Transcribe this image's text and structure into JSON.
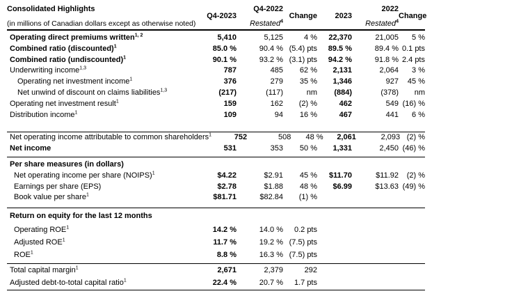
{
  "title": {
    "line1": "Consolidated Highlights",
    "line2": "(in millions of Canadian dollars except as otherwise noted)"
  },
  "columns": [
    {
      "label": "Q4-2023"
    },
    {
      "label": "Q4-2022",
      "sub": "Restated",
      "sup": "4"
    },
    {
      "label": "Change"
    },
    {
      "label": "2023"
    },
    {
      "label": "2022",
      "sub": "Restated",
      "sup": "4"
    },
    {
      "label": "Change"
    }
  ],
  "rows": [
    {
      "type": "data",
      "label": "Operating direct premiums written",
      "sup": "1, 2",
      "bold": true,
      "indent": 0,
      "values": [
        "5,410",
        "5,125",
        "4 %",
        "22,370",
        "21,005",
        "5 %"
      ]
    },
    {
      "type": "data",
      "label": "Combined ratio (discounted)",
      "sup": "1",
      "bold": true,
      "indent": 0,
      "values": [
        "85.0 %",
        "90.4 %",
        "(5.4) pts",
        "89.5 %",
        "89.4 %",
        "0.1 pts"
      ]
    },
    {
      "type": "data",
      "label": "Combined ratio (undiscounted)",
      "sup": "1",
      "bold": true,
      "indent": 0,
      "values": [
        "90.1 %",
        "93.2 %",
        "(3.1) pts",
        "94.2 %",
        "91.8 %",
        "2.4 pts"
      ]
    },
    {
      "type": "data",
      "label": "Underwriting income",
      "sup": "1,3",
      "indent": 0,
      "values": [
        "787",
        "485",
        "62 %",
        "2,131",
        "2,064",
        "3 %"
      ]
    },
    {
      "type": "data",
      "label": "Operating net investment income",
      "sup": "1",
      "indent": 2,
      "values": [
        "376",
        "279",
        "35 %",
        "1,346",
        "927",
        "45 %"
      ]
    },
    {
      "type": "data",
      "label": "Net unwind of discount on claims liabilities",
      "sup": "1,3",
      "indent": 2,
      "values": [
        "(217)",
        "(117)",
        "nm",
        "(884)",
        "(378)",
        "nm"
      ]
    },
    {
      "type": "data",
      "label": "Operating net investment result",
      "sup": "1",
      "indent": 0,
      "values": [
        "159",
        "162",
        "(2) %",
        "462",
        "549",
        "(16) %"
      ]
    },
    {
      "type": "data",
      "label": "Distribution income",
      "sup": "1",
      "indent": 0,
      "values": [
        "109",
        "94",
        "16 %",
        "467",
        "441",
        "6 %"
      ]
    },
    {
      "type": "rule"
    },
    {
      "type": "data",
      "label": "Net operating income attributable to common shareholders",
      "sup": "1",
      "indent": 0,
      "values": [
        "752",
        "508",
        "48 %",
        "2,061",
        "2,093",
        "(2) %"
      ]
    },
    {
      "type": "data",
      "label": "Net income",
      "bold": true,
      "indent": 0,
      "values": [
        "531",
        "353",
        "50 %",
        "1,331",
        "2,450",
        "(46) %"
      ]
    },
    {
      "type": "rule"
    },
    {
      "type": "section",
      "label": "Per share measures (in dollars)"
    },
    {
      "type": "data",
      "label": "Net operating income per share (NOIPS)",
      "sup": "1",
      "indent": 1,
      "values": [
        "$4.22",
        "$2.91",
        "45 %",
        "$11.70",
        "$11.92",
        "(2) %"
      ]
    },
    {
      "type": "data",
      "label": "Earnings per share (EPS)",
      "indent": 1,
      "values": [
        "$2.78",
        "$1.88",
        "48 %",
        "$6.99",
        "$13.63",
        "(49) %"
      ]
    },
    {
      "type": "data",
      "label": "Book value per share",
      "sup": "1",
      "indent": 1,
      "values": [
        "$81.71",
        "$82.84",
        "(1) %",
        "",
        "",
        ""
      ]
    },
    {
      "type": "rule"
    },
    {
      "type": "section",
      "label": "Return on equity for the last 12 months"
    },
    {
      "type": "data",
      "label": "Operating ROE",
      "sup": "1",
      "indent": 1,
      "values": [
        "14.2 %",
        "14.0 %",
        "0.2 pts",
        "",
        "",
        ""
      ]
    },
    {
      "type": "data",
      "label": "Adjusted ROE",
      "sup": "1",
      "indent": 1,
      "values": [
        "11.7 %",
        "19.2 %",
        "(7.5) pts",
        "",
        "",
        ""
      ]
    },
    {
      "type": "data",
      "label": "ROE",
      "sup": "1",
      "indent": 1,
      "values": [
        "8.8 %",
        "16.3 %",
        "(7.5) pts",
        "",
        "",
        ""
      ]
    },
    {
      "type": "rule"
    },
    {
      "type": "data",
      "label": "Total capital margin",
      "sup": "1",
      "indent": 0,
      "values": [
        "2,671",
        "2,379",
        "292",
        "",
        "",
        ""
      ]
    },
    {
      "type": "data",
      "label": "Adjusted debt-to-total capital ratio",
      "sup": "1",
      "indent": 0,
      "values": [
        "22.4 %",
        "20.7 %",
        "1.7 pts",
        "",
        "",
        ""
      ]
    },
    {
      "type": "rule"
    }
  ]
}
